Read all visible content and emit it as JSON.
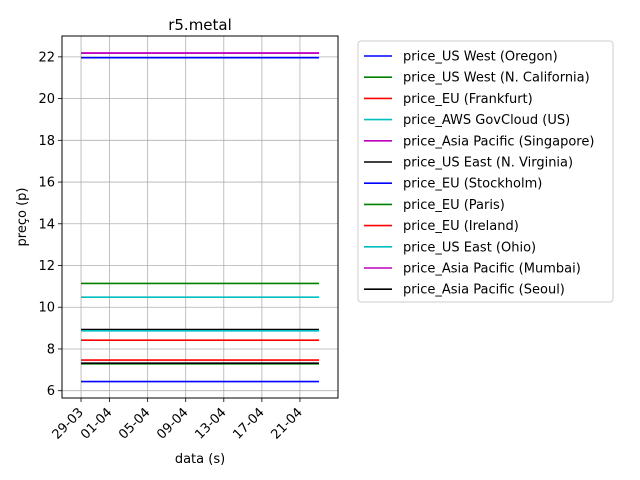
{
  "chart_data": {
    "type": "line",
    "title": "r5.metal",
    "xlabel": "data (s)",
    "ylabel": "preço (p)",
    "x_dates": [
      "2024-03-29",
      "2024-04-23"
    ],
    "x_ticks": [
      {
        "date": "2024-03-29",
        "label": "29-03"
      },
      {
        "date": "2024-04-01",
        "label": "01-04"
      },
      {
        "date": "2024-04-05",
        "label": "05-04"
      },
      {
        "date": "2024-04-09",
        "label": "09-04"
      },
      {
        "date": "2024-04-13",
        "label": "13-04"
      },
      {
        "date": "2024-04-17",
        "label": "17-04"
      },
      {
        "date": "2024-04-21",
        "label": "21-04"
      }
    ],
    "xlim": [
      "2024-03-27",
      "2024-04-25"
    ],
    "ylim": [
      5.65,
      23.0
    ],
    "y_ticks": [
      6,
      8,
      10,
      12,
      14,
      16,
      18,
      20,
      22
    ],
    "grid": true,
    "legend_position": "outside-right",
    "series": [
      {
        "name": "price_US West (Oregon)",
        "color": "#0000ff",
        "values": [
          21.96,
          21.96
        ]
      },
      {
        "name": "price_US West (N. California)",
        "color": "#008000",
        "values": [
          11.14,
          11.14
        ]
      },
      {
        "name": "price_EU (Frankfurt)",
        "color": "#ff0000",
        "values": [
          8.42,
          8.42
        ]
      },
      {
        "name": "price_AWS GovCloud (US)",
        "color": "#00bfbf",
        "values": [
          10.48,
          10.48
        ]
      },
      {
        "name": "price_Asia Pacific (Singapore)",
        "color": "#bf00bf",
        "values": [
          22.18,
          22.18
        ]
      },
      {
        "name": "price_US East (N. Virginia)",
        "color": "#000000",
        "values": [
          8.93,
          8.93
        ]
      },
      {
        "name": "price_EU (Stockholm)",
        "color": "#0000ff",
        "values": [
          6.44,
          6.44
        ]
      },
      {
        "name": "price_EU (Paris)",
        "color": "#008000",
        "values": [
          7.29,
          7.29
        ]
      },
      {
        "name": "price_EU (Ireland)",
        "color": "#ff0000",
        "values": [
          7.47,
          7.47
        ]
      },
      {
        "name": "price_US East (Ohio)",
        "color": "#00bfbf",
        "values": [
          8.87,
          8.87
        ]
      },
      {
        "name": "price_Asia Pacific (Mumbai)",
        "color": "#bf00bf",
        "values": [
          22.18,
          22.18
        ]
      },
      {
        "name": "price_Asia Pacific (Seoul)",
        "color": "#000000",
        "values": [
          7.32,
          7.32
        ]
      }
    ]
  }
}
